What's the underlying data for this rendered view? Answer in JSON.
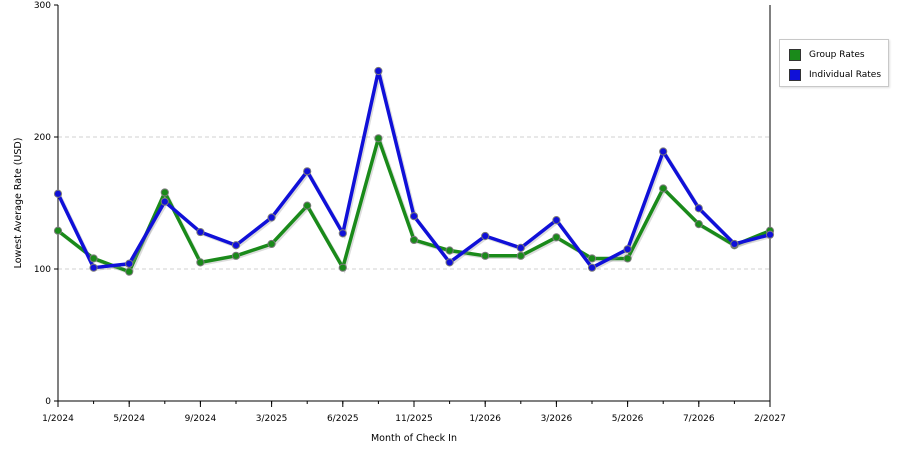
{
  "chart_data": {
    "type": "line",
    "xlabel": "Month of Check In",
    "ylabel": "Lowest Average Rate (USD)",
    "ylim": [
      0,
      300
    ],
    "yticks": [
      "0",
      "100",
      "200",
      "300"
    ],
    "grid": true,
    "legend_position": "right",
    "x_tick_labels": [
      "1/2024",
      "5/2024",
      "9/2024",
      "3/2025",
      "6/2025",
      "11/2025",
      "1/2026",
      "3/2026",
      "5/2026",
      "7/2026",
      "2/2027"
    ],
    "series": [
      {
        "name": "Group Rates",
        "color": "#1a8a1a",
        "values": [
          129,
          108,
          98,
          158,
          105,
          110,
          119,
          148,
          101,
          199,
          122,
          114,
          110,
          110,
          124,
          108,
          108,
          161,
          134,
          118,
          129
        ]
      },
      {
        "name": "Individual Rates",
        "color": "#1010d8",
        "values": [
          157,
          101,
          104,
          151,
          128,
          118,
          139,
          174,
          127,
          250,
          140,
          105,
          125,
          116,
          137,
          101,
          115,
          189,
          146,
          119,
          126
        ]
      }
    ]
  }
}
